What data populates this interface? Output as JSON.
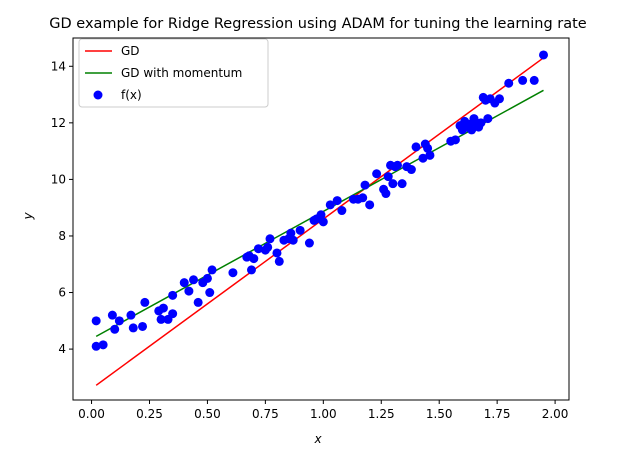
{
  "chart_data": {
    "type": "scatter",
    "title": "GD example for Ridge Regression using ADAM for tuning the learning rate",
    "xlabel": "x",
    "ylabel": "y",
    "xlim": [
      -0.08,
      2.06
    ],
    "ylim": [
      2.2,
      15.0
    ],
    "xticks": [
      "0.00",
      "0.25",
      "0.50",
      "0.75",
      "1.00",
      "1.25",
      "1.50",
      "1.75",
      "2.00"
    ],
    "xtick_values": [
      0.0,
      0.25,
      0.5,
      0.75,
      1.0,
      1.25,
      1.5,
      1.75,
      2.0
    ],
    "yticks": [
      "4",
      "6",
      "8",
      "10",
      "12",
      "14"
    ],
    "ytick_values": [
      4,
      6,
      8,
      10,
      12,
      14
    ],
    "grid": false,
    "legend_position": "top-left",
    "series": [
      {
        "name": "GD",
        "kind": "line",
        "color": "#ff0000",
        "x": [
          0.02,
          1.95
        ],
        "y": [
          2.72,
          14.3
        ]
      },
      {
        "name": "GD with momentum",
        "kind": "line",
        "color": "#008000",
        "x": [
          0.02,
          1.95
        ],
        "y": [
          4.45,
          13.15
        ]
      },
      {
        "name": "f(x)",
        "kind": "scatter",
        "color": "#0000ff",
        "points": [
          [
            0.02,
            5.0
          ],
          [
            0.02,
            4.1
          ],
          [
            0.05,
            4.15
          ],
          [
            0.09,
            5.2
          ],
          [
            0.1,
            4.7
          ],
          [
            0.12,
            5.0
          ],
          [
            0.17,
            5.2
          ],
          [
            0.18,
            4.75
          ],
          [
            0.22,
            4.8
          ],
          [
            0.23,
            5.65
          ],
          [
            0.29,
            5.35
          ],
          [
            0.3,
            5.05
          ],
          [
            0.31,
            5.45
          ],
          [
            0.33,
            5.05
          ],
          [
            0.35,
            5.25
          ],
          [
            0.35,
            5.9
          ],
          [
            0.4,
            6.35
          ],
          [
            0.42,
            6.05
          ],
          [
            0.44,
            6.45
          ],
          [
            0.46,
            5.65
          ],
          [
            0.48,
            6.35
          ],
          [
            0.5,
            6.5
          ],
          [
            0.51,
            6.0
          ],
          [
            0.52,
            6.8
          ],
          [
            0.61,
            6.7
          ],
          [
            0.67,
            7.25
          ],
          [
            0.68,
            7.3
          ],
          [
            0.69,
            6.8
          ],
          [
            0.7,
            7.2
          ],
          [
            0.72,
            7.55
          ],
          [
            0.75,
            7.5
          ],
          [
            0.76,
            7.6
          ],
          [
            0.77,
            7.9
          ],
          [
            0.8,
            7.4
          ],
          [
            0.81,
            7.1
          ],
          [
            0.83,
            7.85
          ],
          [
            0.85,
            7.9
          ],
          [
            0.86,
            8.1
          ],
          [
            0.87,
            7.85
          ],
          [
            0.9,
            8.2
          ],
          [
            0.94,
            7.75
          ],
          [
            0.96,
            8.55
          ],
          [
            0.97,
            8.6
          ],
          [
            0.99,
            8.75
          ],
          [
            1.0,
            8.5
          ],
          [
            1.03,
            9.1
          ],
          [
            1.06,
            9.25
          ],
          [
            1.08,
            8.9
          ],
          [
            1.13,
            9.3
          ],
          [
            1.15,
            9.3
          ],
          [
            1.17,
            9.35
          ],
          [
            1.18,
            9.8
          ],
          [
            1.2,
            9.1
          ],
          [
            1.23,
            10.2
          ],
          [
            1.26,
            9.65
          ],
          [
            1.27,
            9.5
          ],
          [
            1.28,
            10.1
          ],
          [
            1.29,
            10.5
          ],
          [
            1.3,
            9.85
          ],
          [
            1.31,
            10.45
          ],
          [
            1.32,
            10.5
          ],
          [
            1.34,
            9.85
          ],
          [
            1.36,
            10.45
          ],
          [
            1.38,
            10.35
          ],
          [
            1.4,
            11.15
          ],
          [
            1.43,
            10.75
          ],
          [
            1.44,
            11.25
          ],
          [
            1.45,
            11.1
          ],
          [
            1.46,
            10.85
          ],
          [
            1.55,
            11.35
          ],
          [
            1.57,
            11.4
          ],
          [
            1.59,
            11.9
          ],
          [
            1.6,
            11.75
          ],
          [
            1.61,
            12.05
          ],
          [
            1.62,
            11.85
          ],
          [
            1.63,
            11.95
          ],
          [
            1.64,
            11.75
          ],
          [
            1.65,
            12.15
          ],
          [
            1.66,
            12.0
          ],
          [
            1.67,
            11.85
          ],
          [
            1.68,
            12.0
          ],
          [
            1.69,
            12.9
          ],
          [
            1.7,
            12.8
          ],
          [
            1.71,
            12.15
          ],
          [
            1.72,
            12.85
          ],
          [
            1.74,
            12.7
          ],
          [
            1.76,
            12.85
          ],
          [
            1.8,
            13.4
          ],
          [
            1.86,
            13.5
          ],
          [
            1.91,
            13.5
          ],
          [
            1.95,
            14.4
          ]
        ]
      }
    ]
  }
}
